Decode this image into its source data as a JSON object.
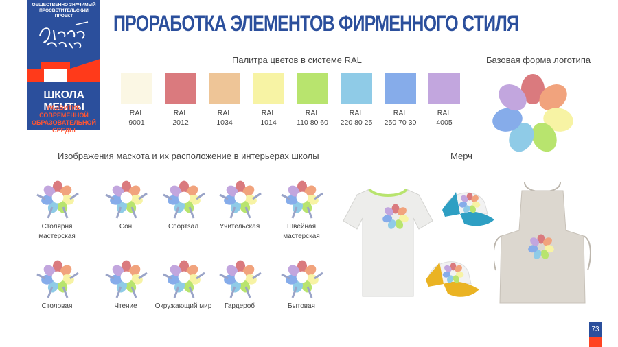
{
  "logo": {
    "top_text": "ОБЩЕСТВЕННО ЗНАЧИМЫЙ ПРОСВЕТИТЕЛЬСКИЙ ПРОЕКТ",
    "name": "ШКОЛА МЕЧТЫ",
    "subtitle": "РАЗВИТИЕ СОВРЕМЕННОЙ ОБРАЗОВАТЕЛЬНОЙ СРЕДЫ"
  },
  "title": "ПРОРАБОТКА ЭЛЕМЕНТОВ ФИРМЕННОГО СТИЛЯ",
  "palette": {
    "heading": "Палитра цветов в системе RAL",
    "colors": [
      {
        "code1": "RAL",
        "code2": "9001",
        "hex": "#fbf7e4"
      },
      {
        "code1": "RAL",
        "code2": "2012",
        "hex": "#da7a7e"
      },
      {
        "code1": "RAL",
        "code2": "1034",
        "hex": "#eec597"
      },
      {
        "code1": "RAL",
        "code2": "1014",
        "hex": "#f7f3a4"
      },
      {
        "code1": "RAL",
        "code2": "110 80 60",
        "hex": "#b8e46e"
      },
      {
        "code1": "RAL",
        "code2": "220 80 25",
        "hex": "#8fcbe7"
      },
      {
        "code1": "RAL",
        "code2": "250 70 30",
        "hex": "#86acea"
      },
      {
        "code1": "RAL",
        "code2": "4005",
        "hex": "#c2a6de"
      }
    ]
  },
  "logo_form": {
    "heading": "Базовая форма логотипа"
  },
  "mascots": {
    "heading": "Изображения маскота и их расположение в интерьерах школы",
    "row1": [
      "Столярня мастерская",
      "Сон",
      "Спортзал",
      "Учительская",
      "Швейная мастерская"
    ],
    "row2": [
      "Столовая",
      "Чтение",
      "Окружающий мир",
      "Гардероб",
      "Бытовая"
    ]
  },
  "merch": {
    "heading": "Мерч"
  },
  "page_number": "73"
}
